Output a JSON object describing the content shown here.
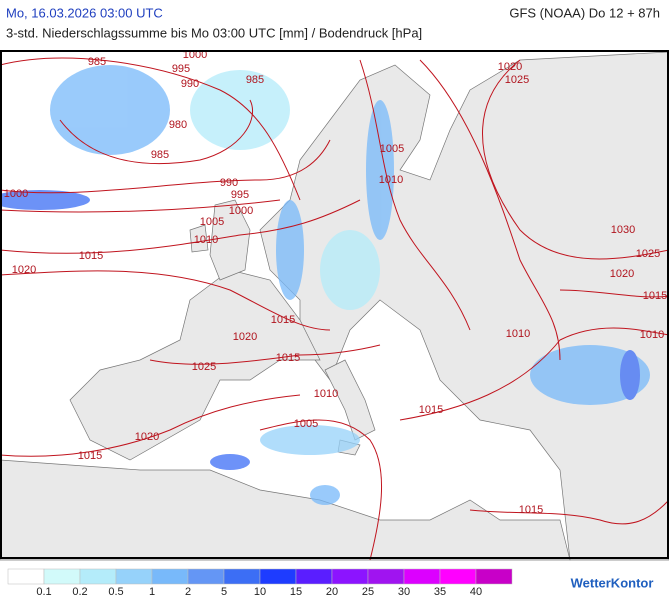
{
  "header": {
    "date": "Mo, 16.03.2026 03:00 UTC",
    "model": "GFS (NOAA) Do 12 + 87h",
    "subtitle": "3-std. Niederschlagssumme bis Mo 03:00 UTC [mm] / Bodendruck [hPa]"
  },
  "isobar_labels": [
    "985",
    "995",
    "1000",
    "990",
    "985",
    "980",
    "985",
    "990",
    "995",
    "1000",
    "1000",
    "1005",
    "1010",
    "1015",
    "1020",
    "1005",
    "1010",
    "1015",
    "1020",
    "1015",
    "1025",
    "1010",
    "1015",
    "1005",
    "1020",
    "1015",
    "1010",
    "1015",
    "1020",
    "1025",
    "1030",
    "1025",
    "1020",
    "1015",
    "1010"
  ],
  "legend": {
    "colors": [
      "#ffffff",
      "#d2fafa",
      "#b4ecfa",
      "#96d2fa",
      "#78b9fa",
      "#6496f5",
      "#3c6ef5",
      "#1e3cff",
      "#5a1eff",
      "#8c14ff",
      "#a014f0",
      "#dc00ff",
      "#ff00ff",
      "#c800c8"
    ],
    "labels": [
      "0.1",
      "0.2",
      "0.5",
      "1",
      "2",
      "5",
      "10",
      "15",
      "20",
      "25",
      "30",
      "35",
      "40"
    ]
  },
  "brand": "WetterKontor"
}
